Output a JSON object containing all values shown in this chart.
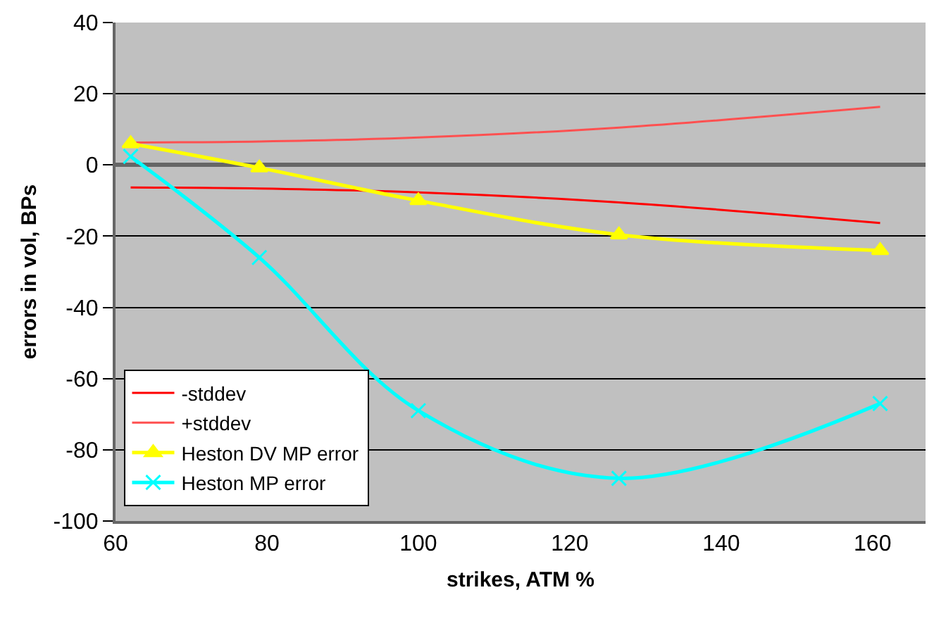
{
  "chart_data": {
    "type": "line",
    "xlabel": "strikes, ATM %",
    "ylabel": "errors in vol, BPs",
    "x": [
      62,
      79,
      100,
      126.5,
      161
    ],
    "series": [
      {
        "name": "-stddev",
        "color": "#ff0000",
        "marker": "none",
        "values": [
          -6.3,
          -6.6,
          -7.7,
          -10.5,
          -16.3
        ]
      },
      {
        "name": "+stddev",
        "color": "#ff5050",
        "marker": "none",
        "values": [
          6.3,
          6.6,
          7.7,
          10.5,
          16.3
        ]
      },
      {
        "name": "Heston DV MP error",
        "color": "#ffff00",
        "marker": "triangle",
        "values": [
          6,
          -0.8,
          -10,
          -19.6,
          -24
        ]
      },
      {
        "name": "Heston MP error",
        "color": "#00ffff",
        "marker": "cross",
        "values": [
          2.4,
          -26,
          -69,
          -88,
          -67
        ]
      }
    ],
    "xlim": [
      60,
      167
    ],
    "xticks": [
      60,
      80,
      100,
      120,
      140,
      160
    ],
    "ylim": [
      -100,
      40
    ],
    "yticks": [
      -100,
      -80,
      -60,
      -40,
      -20,
      0,
      20,
      40
    ],
    "grid": "y",
    "legend": "bottom left"
  }
}
